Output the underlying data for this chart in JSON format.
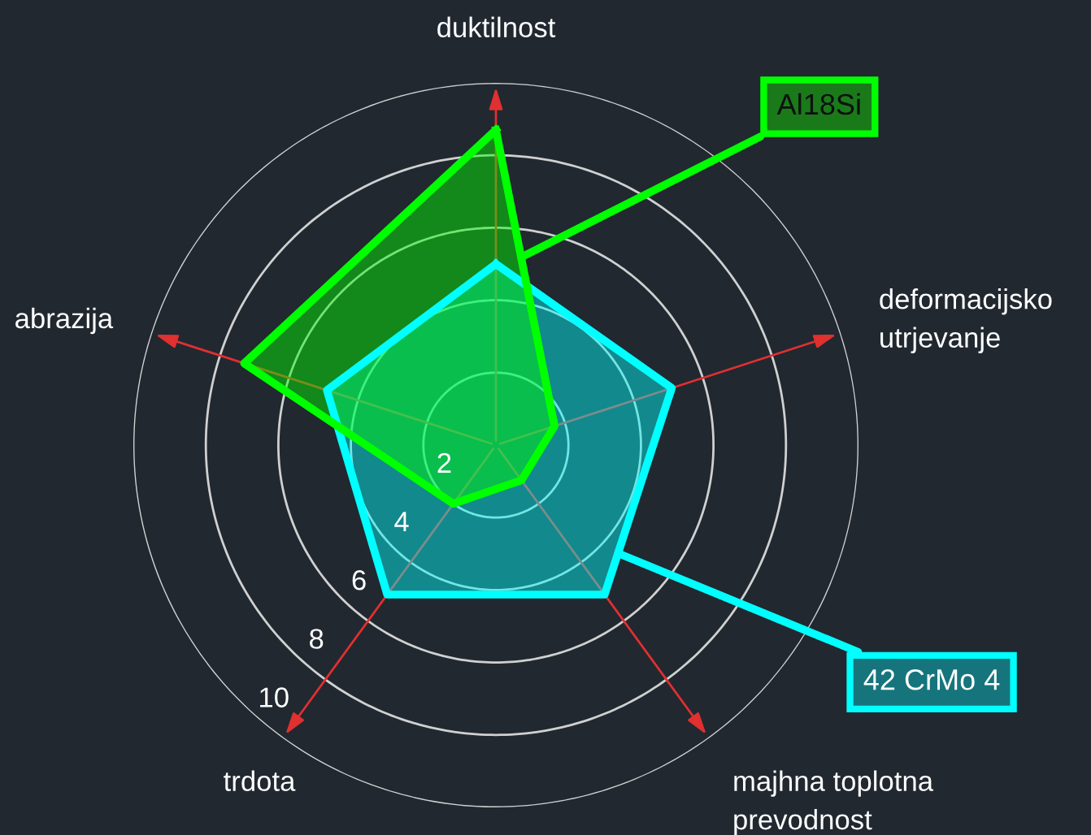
{
  "chart_data": {
    "type": "radar",
    "categories": [
      "duktilnost",
      "deformacijsko\nutrjevanje",
      "majhna toplotna\nprevodnost",
      "trdota",
      "abrazija"
    ],
    "series": [
      {
        "name": "42 CrMo 4",
        "color": "#00ffff",
        "values": [
          5,
          5.1,
          5.1,
          5.1,
          4.9
        ]
      },
      {
        "name": "Al18Si",
        "color": "#00ff00",
        "values": [
          8.7,
          1.7,
          1.2,
          2.0,
          7.3
        ]
      }
    ],
    "ylim": [
      0,
      10
    ],
    "yticks": [
      2,
      4,
      6,
      8,
      10
    ]
  }
}
